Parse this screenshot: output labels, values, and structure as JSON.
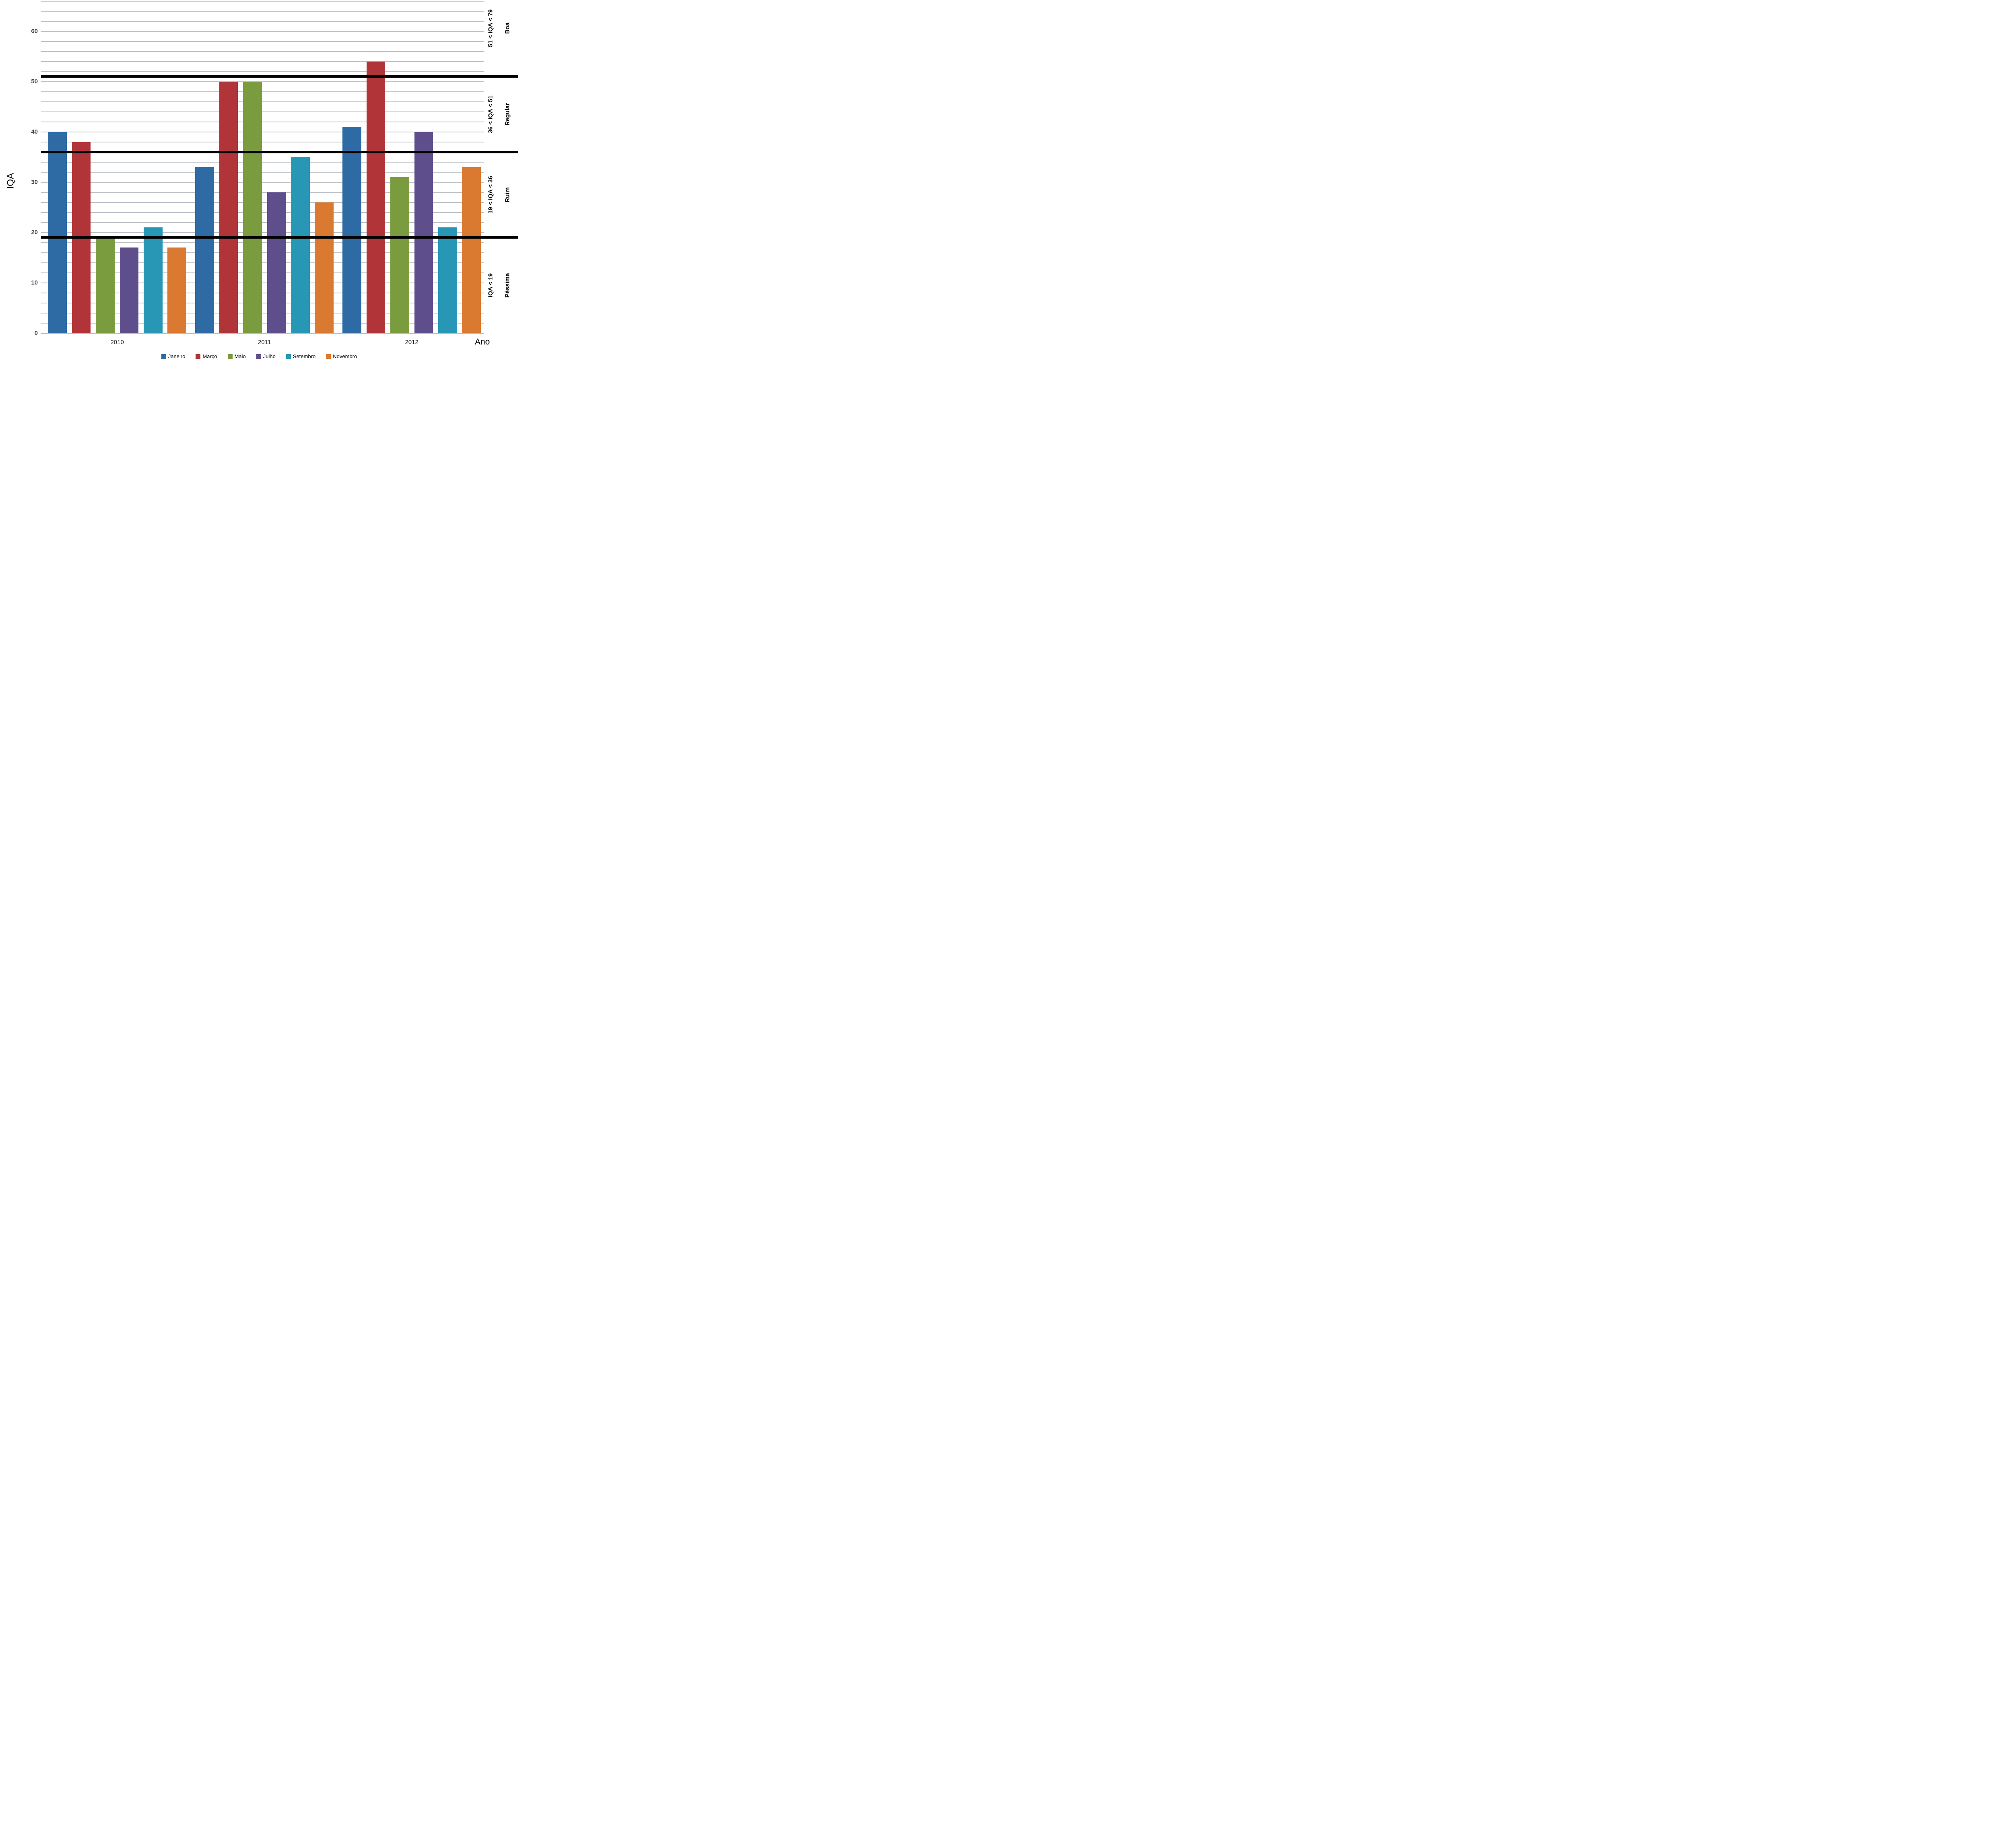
{
  "chart_data": {
    "type": "bar",
    "title": "",
    "ylabel": "IQA",
    "xlabel": "Ano",
    "ylim": [
      0,
      66.2
    ],
    "y_ticks": [
      0,
      10,
      20,
      30,
      40,
      50,
      60
    ],
    "minor_gridline_step": 2,
    "grid": true,
    "legend_position": "bottom",
    "categories": [
      "2010",
      "2011",
      "2012"
    ],
    "series": [
      {
        "name": "Janeiro",
        "color": "#2e6ba4",
        "values": [
          40,
          33,
          41
        ]
      },
      {
        "name": "Março",
        "color": "#b13438",
        "values": [
          38,
          50,
          54
        ]
      },
      {
        "name": "Maio",
        "color": "#7a9c3e",
        "values": [
          19,
          50,
          31
        ]
      },
      {
        "name": "Julho",
        "color": "#5f4e8c",
        "values": [
          17,
          28,
          40
        ]
      },
      {
        "name": "Setembro",
        "color": "#2797b5",
        "values": [
          21,
          35,
          21
        ]
      },
      {
        "name": "Novembro",
        "color": "#da7a30",
        "values": [
          17,
          26,
          33
        ]
      }
    ],
    "threshold_lines": [
      19,
      36,
      51
    ],
    "quality_zones": [
      {
        "range_label": "51 < IQA < 79",
        "name": "Boa",
        "from": 51,
        "to": 79
      },
      {
        "range_label": "36 < IQA < 51",
        "name": "Regular",
        "from": 36,
        "to": 51
      },
      {
        "range_label": "19 < IQA < 36",
        "name": "Ruim",
        "from": 19,
        "to": 36
      },
      {
        "range_label": "IQA < 19",
        "name": "Péssima",
        "from": 0,
        "to": 19
      }
    ]
  }
}
